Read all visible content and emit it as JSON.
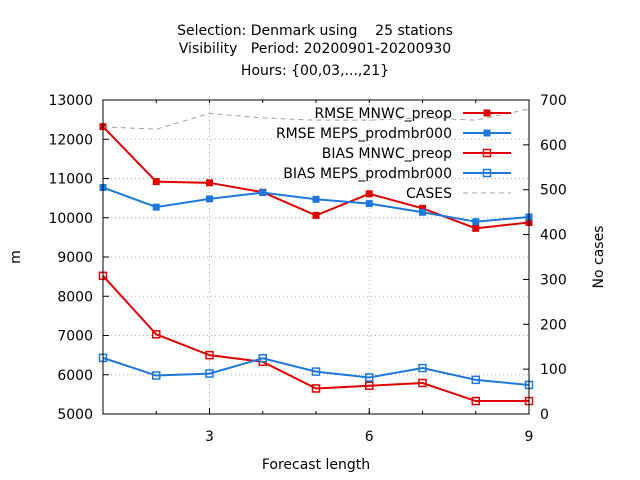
{
  "chart_data": {
    "type": "line",
    "title_lines": [
      "Selection: Denmark using    25 stations",
      "Visibility   Period: 20200901-20200930",
      "Hours: {00,03,...,21}"
    ],
    "xlabel": "Forecast length",
    "ylabel": "m",
    "y2label": "No cases",
    "xlim": [
      1,
      9
    ],
    "ylim": [
      5000,
      13000
    ],
    "y2lim": [
      0,
      700
    ],
    "xticks": [
      "3",
      "6",
      "9"
    ],
    "yticks": [
      "5000",
      "6000",
      "7000",
      "8000",
      "9000",
      "10000",
      "11000",
      "12000",
      "13000"
    ],
    "y2ticks": [
      "0",
      "100",
      "200",
      "300",
      "400",
      "500",
      "600",
      "700"
    ],
    "grid": true,
    "legend_position": "top-right",
    "x": [
      1,
      2,
      3,
      4,
      5,
      6,
      7,
      8,
      9
    ],
    "series": [
      {
        "name": "RMSE MNWC_preop",
        "axis": "y",
        "color": "#e00000",
        "marker": "filled-square",
        "values": [
          12320,
          10920,
          10890,
          10650,
          10060,
          10610,
          10240,
          9730,
          9880
        ]
      },
      {
        "name": "RMSE MEPS_prodmbr000",
        "axis": "y",
        "color": "#1e78dc",
        "marker": "filled-square",
        "values": [
          10770,
          10270,
          10480,
          10640,
          10470,
          10360,
          10140,
          9900,
          10020
        ]
      },
      {
        "name": "BIAS MNWC_preop",
        "axis": "y",
        "color": "#e00000",
        "marker": "open-square",
        "values": [
          8520,
          7030,
          6500,
          6330,
          5650,
          5720,
          5790,
          5330,
          5330
        ]
      },
      {
        "name": "BIAS MEPS_prodmbr000",
        "axis": "y",
        "color": "#1e78dc",
        "marker": "open-square",
        "values": [
          6430,
          5980,
          6030,
          6420,
          6080,
          5930,
          6170,
          5870,
          5740
        ]
      },
      {
        "name": "CASES",
        "axis": "y2",
        "color": "#a0a0a0",
        "dashed": true,
        "values": [
          640,
          635,
          670,
          660,
          655,
          655,
          660,
          655,
          680
        ]
      }
    ]
  }
}
